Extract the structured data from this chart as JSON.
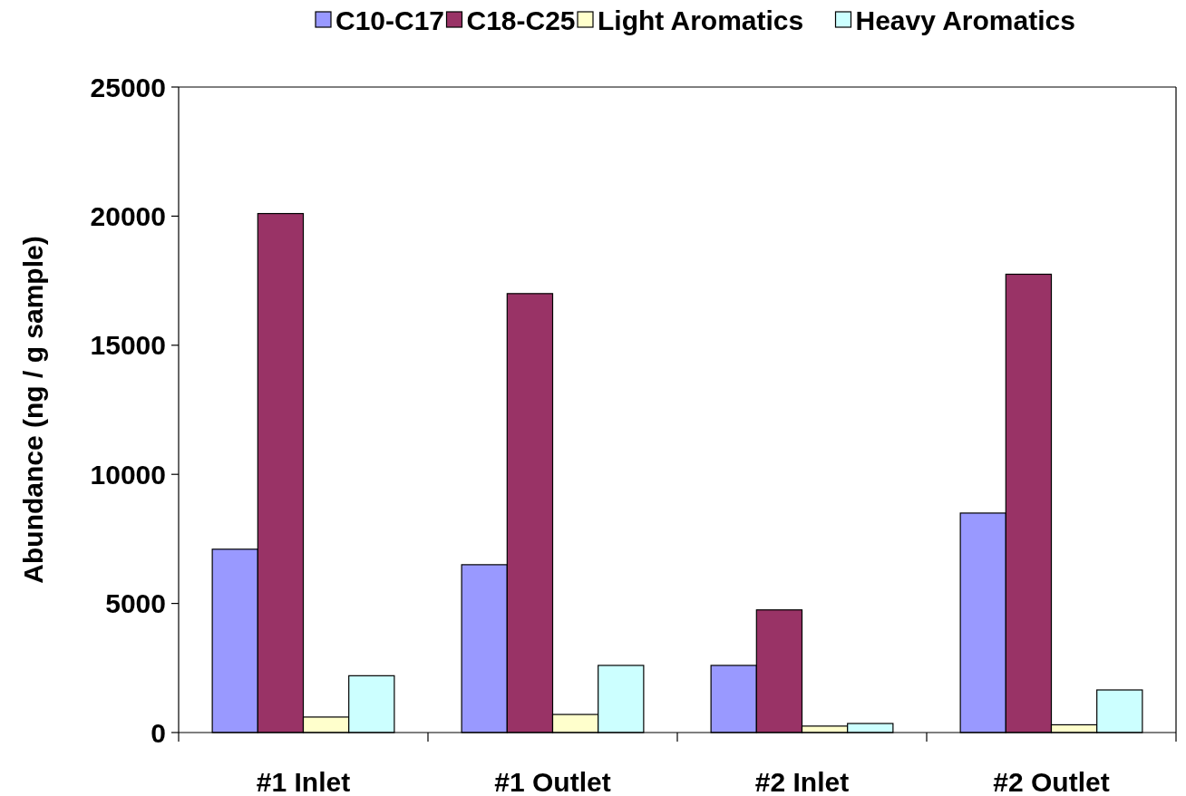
{
  "chart_data": {
    "type": "bar",
    "ylabel": "Abundance (ng / g sample)",
    "categories": [
      "#1 Inlet",
      "#1 Outlet",
      "#2 Inlet",
      "#2 Outlet"
    ],
    "series": [
      {
        "name": "C10-C17",
        "color": "#9999ff",
        "values": [
          7100,
          6500,
          2600,
          8500
        ]
      },
      {
        "name": "C18-C25",
        "color": "#993366",
        "values": [
          20100,
          17000,
          4750,
          17750
        ]
      },
      {
        "name": "Light Aromatics",
        "color": "#ffffcc",
        "values": [
          600,
          700,
          250,
          300
        ]
      },
      {
        "name": "Heavy Aromatics",
        "color": "#ccffff",
        "values": [
          2200,
          2600,
          350,
          1650
        ]
      }
    ],
    "ylim": [
      0,
      25000
    ],
    "yticks": [
      0,
      5000,
      10000,
      15000,
      20000,
      25000
    ],
    "grid": false,
    "legend": "top"
  }
}
